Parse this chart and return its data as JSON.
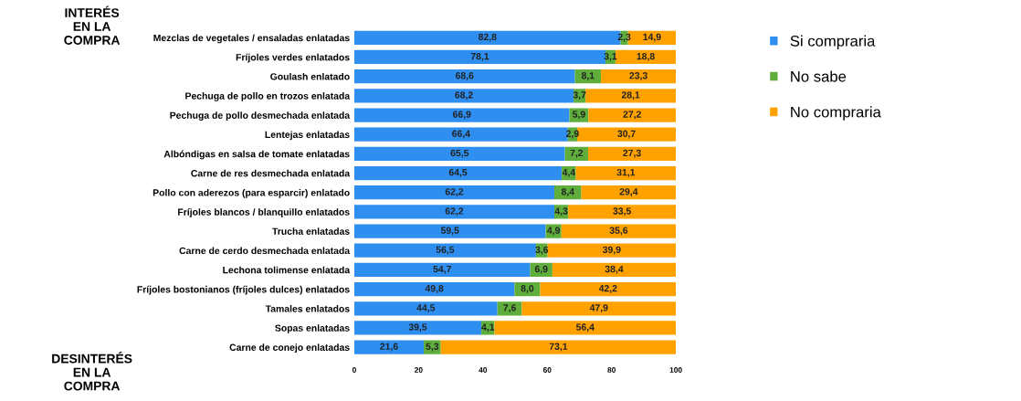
{
  "chart_data": {
    "type": "bar",
    "orientation": "horizontal",
    "stacked": true,
    "categories": [
      "Mezclas de vegetales / ensaladas enlatadas",
      "Fríjoles verdes enlatados",
      "Goulash enlatado",
      "Pechuga de pollo en trozos enlatada",
      "Pechuga de pollo desmechada enlatada",
      "Lentejas enlatadas",
      "Albóndigas en salsa de tomate enlatadas",
      "Carne de res desmechada enlatada",
      "Pollo con aderezos (para esparcir) enlatado",
      "Fríjoles blancos / blanquillo enlatados",
      "Trucha enlatadas",
      "Carne de cerdo desmechada enlatada",
      "Lechona tolimense enlatada",
      "Fríjoles bostonianos (fríjoles dulces) enlatados",
      "Tamales enlatados",
      "Sopas enlatadas",
      "Carne de conejo enlatadas"
    ],
    "series": [
      {
        "name": "Si compraria",
        "color": "#2e8ff0",
        "values": [
          82.8,
          78.1,
          68.6,
          68.2,
          66.9,
          66.4,
          65.5,
          64.5,
          62.2,
          62.2,
          59.5,
          56.5,
          54.7,
          49.8,
          44.5,
          39.5,
          21.6
        ],
        "value_labels": [
          "82,8",
          "78,1",
          "68,6",
          "68,2",
          "66,9",
          "66,4",
          "65,5",
          "64,5",
          "62,2",
          "62,2",
          "59,5",
          "56,5",
          "54,7",
          "49,8",
          "44,5",
          "39,5",
          "21,6"
        ]
      },
      {
        "name": "No sabe",
        "color": "#5fae3c",
        "values": [
          2.3,
          3.1,
          8.1,
          3.7,
          5.9,
          2.9,
          7.2,
          4.4,
          8.4,
          4.3,
          4.9,
          3.6,
          6.9,
          8.0,
          7.6,
          4.1,
          5.3
        ],
        "value_labels": [
          "2,3",
          "3,1",
          "8,1",
          "3,7",
          "5,9",
          "2,9",
          "7,2",
          "4,4",
          "8,4",
          "4,3",
          "4,9",
          "3,6",
          "6,9",
          "8,0",
          "7,6",
          "4,1",
          "5,3"
        ]
      },
      {
        "name": "No compraria",
        "color": "#ffa200",
        "values": [
          14.9,
          18.8,
          23.3,
          28.1,
          27.2,
          30.7,
          27.3,
          31.1,
          29.4,
          33.5,
          35.6,
          39.9,
          38.4,
          42.2,
          47.9,
          56.4,
          73.1
        ],
        "value_labels": [
          "14,9",
          "18,8",
          "23,3",
          "28,1",
          "27,2",
          "30,7",
          "27,3",
          "31,1",
          "29,4",
          "33,5",
          "35,6",
          "39,9",
          "38,4",
          "42,2",
          "47,9",
          "56,4",
          "73,1"
        ]
      }
    ],
    "xlim": [
      0,
      100
    ],
    "xticks": [
      0,
      20,
      40,
      60,
      80,
      100
    ],
    "legend": "right",
    "grid": false,
    "annotations": [
      "INTERÉS\nEN LA\nCOMPRA",
      "DESINTERÉS\nEN LA\nCOMPRA"
    ]
  }
}
